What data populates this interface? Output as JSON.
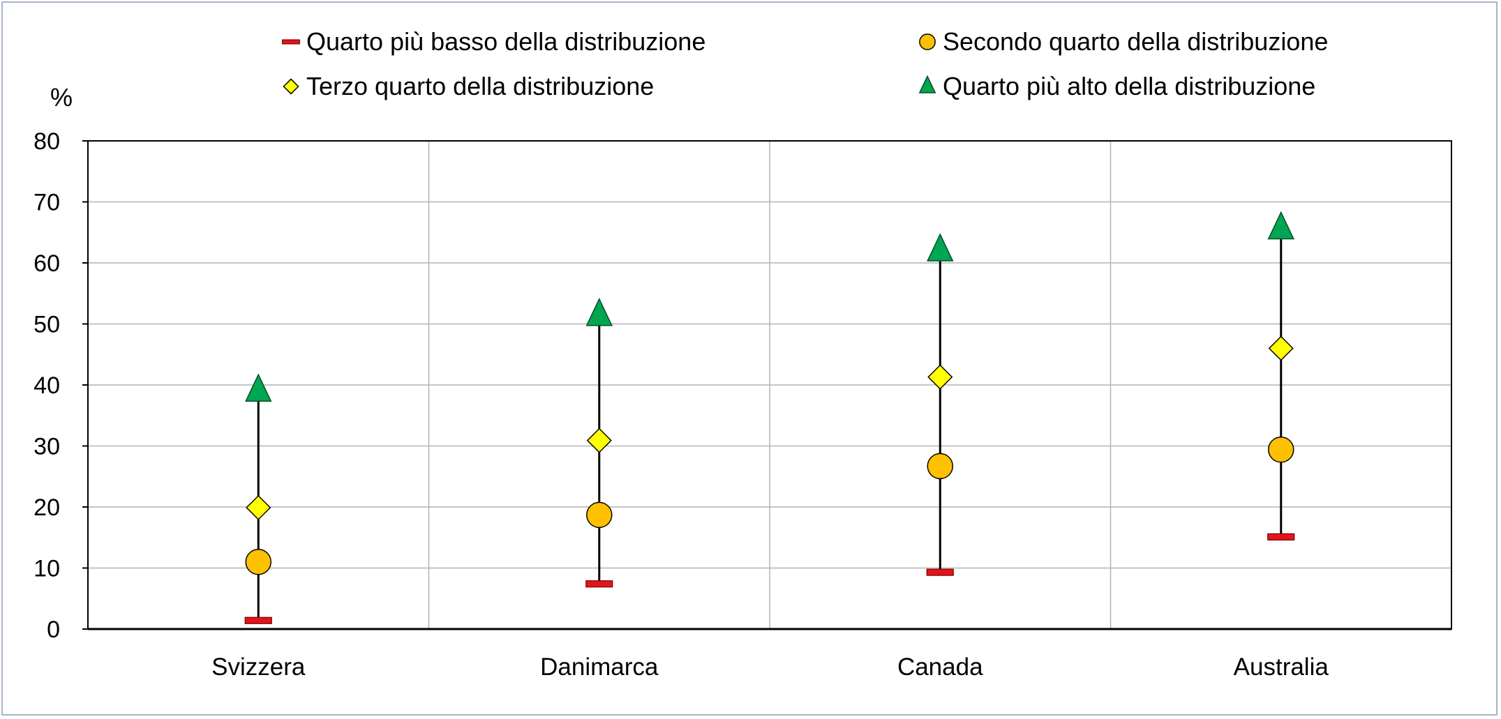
{
  "chart_data": {
    "type": "scatter",
    "unit_label": "%",
    "categories": [
      "Svizzera",
      "Danimarca",
      "Canada",
      "Australia"
    ],
    "ylim": [
      0,
      80
    ],
    "yticks": [
      "0",
      "10",
      "20",
      "30",
      "40",
      "50",
      "60",
      "70",
      "80"
    ],
    "grid": true,
    "legend_position": "top",
    "series": [
      {
        "name": "Quarto più basso della distribuzione",
        "marker": "dash",
        "color": "#e3141b",
        "values": [
          1.4,
          7.4,
          9.3,
          15.1
        ]
      },
      {
        "name": "Secondo quarto della distribuzione",
        "marker": "circle",
        "color": "#ffc000",
        "values": [
          11.0,
          18.7,
          26.7,
          29.4
        ]
      },
      {
        "name": "Terzo quarto della distribuzione",
        "marker": "diamond",
        "color": "#ffff00",
        "values": [
          19.9,
          30.9,
          41.3,
          46.0
        ]
      },
      {
        "name": "Quarto più alto della distribuzione",
        "marker": "triangle",
        "color": "#00a651",
        "values": [
          39.0,
          51.4,
          62.0,
          65.6
        ]
      }
    ]
  }
}
